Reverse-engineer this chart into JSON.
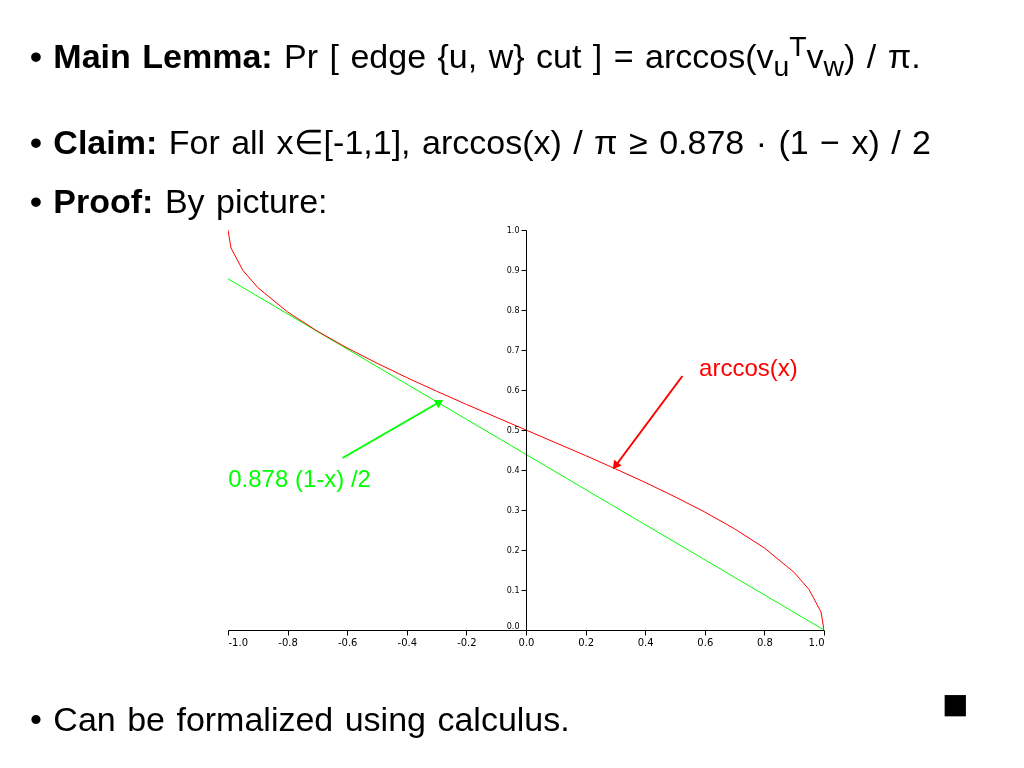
{
  "chart_data": {
    "type": "line",
    "x": [
      -1,
      -0.99,
      -0.95,
      -0.9,
      -0.8,
      -0.7,
      -0.6,
      -0.5,
      -0.4,
      -0.3,
      -0.2,
      -0.1,
      0,
      0.1,
      0.2,
      0.3,
      0.4,
      0.5,
      0.6,
      0.7,
      0.8,
      0.9,
      0.95,
      0.99,
      1
    ],
    "series": [
      {
        "color": "#ff0000",
        "values": [
          1.0,
          0.955,
          0.899,
          0.856,
          0.795,
          0.747,
          0.705,
          0.667,
          0.631,
          0.597,
          0.564,
          0.532,
          0.5,
          0.468,
          0.436,
          0.403,
          0.369,
          0.333,
          0.295,
          0.253,
          0.205,
          0.144,
          0.101,
          0.045,
          0
        ]
      },
      {
        "color": "#00ff00",
        "x": [
          -1,
          1
        ],
        "values": [
          0.878,
          0
        ]
      }
    ],
    "xlim": [
      -1,
      1
    ],
    "xticks": [
      {
        "value": -1,
        "label": "-1.0"
      },
      {
        "value": -0.8,
        "label": "-0.8"
      },
      {
        "value": -0.6,
        "label": "-0.6"
      },
      {
        "value": -0.4,
        "label": "-0.4"
      },
      {
        "value": -0.2,
        "label": "-0.2"
      },
      {
        "value": 0,
        "label": "0.0"
      },
      {
        "value": 0.2,
        "label": "0.2"
      },
      {
        "value": 0.4,
        "label": "0.4"
      },
      {
        "value": 0.6,
        "label": "0.6"
      },
      {
        "value": 0.8,
        "label": "0.8"
      },
      {
        "value": 1,
        "label": "1.0"
      }
    ],
    "ylim": [
      0,
      1
    ],
    "yticks": [
      {
        "value": 0,
        "label": "0.0"
      },
      {
        "value": 0.1,
        "label": "0.1"
      },
      {
        "value": 0.2,
        "label": "0.2"
      },
      {
        "value": 0.3,
        "label": "0.3"
      },
      {
        "value": 0.4,
        "label": "0.4"
      },
      {
        "value": 0.5,
        "label": "0.5"
      },
      {
        "value": 0.6,
        "label": "0.6"
      },
      {
        "value": 0.7,
        "label": "0.7"
      },
      {
        "value": 0.8,
        "label": "0.8"
      },
      {
        "value": 0.9,
        "label": "0.9"
      },
      {
        "value": 1,
        "label": "1.0"
      }
    ],
    "grid": false,
    "annotations": [
      {
        "text": "arccos(x)",
        "x": 0.3,
        "y": 0.41
      },
      {
        "text": "0.878 (1-x) /2",
        "x": -0.29,
        "y": 0.57
      },
      "•  Main Lemma: Pr [ edge {u, w} cut ] = arccos(v$_{u}$$^{T}$v$_{w}$) / π.",
      "•  Claim: For all x∈[-1,1],  arccos(x) / π ≥ 0.878 · (1 − x) / 2",
      "•  Proof: By picture:",
      "•  Can be formalized using calculus.",
      "■"
    ]
  }
}
